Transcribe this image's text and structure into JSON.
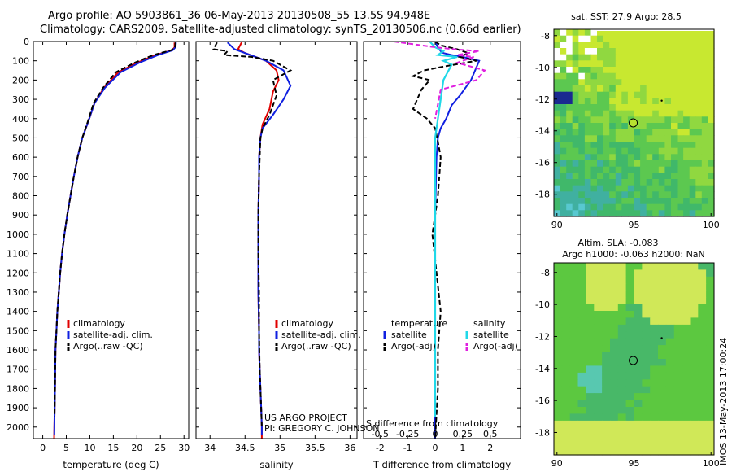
{
  "header": {
    "line1": "Argo profile: AO 5903861_36 06-May-2013 20130508_55 13.5S 94.948E",
    "line2": "Climatology: CARS2009. Satellite-adjusted climatology: synTS_20130506.nc (0.66d earlier)"
  },
  "side_label": "IMOS 13-May-2013 17:00:24",
  "colors": {
    "clim": "#e00000",
    "sat": "#1020e0",
    "argo": "#000000",
    "sal_sat": "#20d8e8",
    "sal_argo": "#e020e0"
  },
  "chart_data": [
    {
      "type": "line",
      "id": "temperature",
      "xlabel": "temperature (deg C)",
      "ylabel": "",
      "xlim": [
        -2,
        31
      ],
      "ylim": [
        2060,
        0
      ],
      "xticks": [
        0,
        5,
        10,
        15,
        20,
        25,
        30
      ],
      "yticks": [
        0,
        100,
        200,
        300,
        400,
        500,
        600,
        700,
        800,
        900,
        1000,
        1100,
        1200,
        1300,
        1400,
        1500,
        1600,
        1700,
        1800,
        1900,
        2000
      ],
      "legend": [
        "climatology",
        "satellite-adj. clim.",
        "Argo(..raw -QC)"
      ],
      "series": [
        {
          "name": "climatology",
          "style": "clim",
          "x": [
            28,
            28,
            27.5,
            24,
            20,
            16,
            13,
            11,
            9.6,
            8.4,
            7.4,
            6.6,
            5.9,
            5.2,
            4.6,
            4.1,
            3.7,
            3.4,
            3.1,
            2.9,
            2.7,
            2.6,
            2.5,
            2.4
          ],
          "y": [
            5,
            30,
            45,
            70,
            110,
            160,
            240,
            320,
            420,
            500,
            600,
            700,
            800,
            900,
            1000,
            1100,
            1200,
            1300,
            1400,
            1500,
            1600,
            1800,
            1950,
            2060
          ]
        },
        {
          "name": "satellite-adj. clim.",
          "style": "sat",
          "x": [
            28.3,
            28.2,
            27.6,
            24.5,
            20.5,
            16.5,
            13.2,
            11,
            9.6,
            8.4,
            7.4,
            6.6,
            5.9,
            5.2,
            4.6,
            4.1,
            3.7,
            3.4,
            3.1,
            2.9,
            2.7,
            2.6,
            2.5,
            2.45
          ],
          "y": [
            5,
            30,
            45,
            70,
            110,
            160,
            240,
            320,
            420,
            500,
            600,
            700,
            800,
            900,
            1000,
            1100,
            1200,
            1300,
            1400,
            1500,
            1600,
            1800,
            1950,
            2040
          ]
        },
        {
          "name": "Argo(..raw -QC)",
          "style": "argo",
          "x": [
            28.2,
            28.1,
            27.3,
            23.5,
            19.5,
            15.5,
            12.8,
            10.8,
            9.5,
            8.4,
            7.4,
            6.6,
            5.9,
            5.2,
            4.6,
            4.1,
            3.7,
            3.4,
            3.1,
            2.9,
            2.7,
            2.6,
            2.5
          ],
          "y": [
            5,
            30,
            45,
            70,
            110,
            160,
            240,
            320,
            420,
            500,
            600,
            700,
            800,
            900,
            1000,
            1100,
            1200,
            1300,
            1400,
            1500,
            1600,
            1800,
            1950
          ]
        }
      ]
    },
    {
      "type": "line",
      "id": "salinity",
      "xlabel": "salinity",
      "ylabel": "",
      "xlim": [
        33.8,
        36.1
      ],
      "ylim": [
        2060,
        0
      ],
      "xticks": [
        34,
        34.5,
        35,
        35.5,
        36
      ],
      "xticklabels": [
        "34",
        "34.5",
        "35",
        "35.5",
        "36"
      ],
      "legend": [
        "climatology",
        "satellite-adj. clim.",
        "Argo(..raw -QC)"
      ],
      "footer": [
        "US ARGO PROJECT",
        "PI: GREGORY C. JOHNSON"
      ],
      "series": [
        {
          "name": "climatology",
          "style": "clim",
          "x": [
            34.45,
            34.4,
            34.5,
            34.8,
            34.95,
            34.98,
            34.9,
            34.85,
            34.75,
            34.72,
            34.7,
            34.7,
            34.69,
            34.69,
            34.69,
            34.7,
            34.7,
            34.71,
            34.72,
            34.73,
            34.74,
            34.74
          ],
          "y": [
            5,
            40,
            60,
            100,
            150,
            200,
            260,
            350,
            430,
            500,
            600,
            700,
            900,
            1100,
            1300,
            1500,
            1600,
            1700,
            1800,
            1900,
            2000,
            2060
          ]
        },
        {
          "name": "satellite-adj. clim.",
          "style": "sat",
          "x": [
            34.25,
            34.35,
            34.5,
            34.8,
            35.05,
            35.15,
            35.05,
            34.9,
            34.75,
            34.72,
            34.7,
            34.7,
            34.69,
            34.69,
            34.69,
            34.7,
            34.7,
            34.71,
            34.72,
            34.73,
            34.74,
            34.74
          ],
          "y": [
            5,
            40,
            60,
            100,
            150,
            230,
            300,
            380,
            450,
            500,
            600,
            700,
            900,
            1100,
            1300,
            1500,
            1600,
            1700,
            1800,
            1900,
            2000,
            2040
          ]
        },
        {
          "name": "Argo(..raw -QC)",
          "style": "argo",
          "x": [
            34.1,
            34.05,
            34.25,
            34.2,
            34.6,
            34.9,
            35.15,
            34.9,
            34.95,
            34.85,
            34.75,
            34.72,
            34.7,
            34.69,
            34.69,
            34.7,
            34.7,
            34.71,
            34.72,
            34.73,
            34.74
          ],
          "y": [
            5,
            40,
            50,
            70,
            80,
            100,
            150,
            200,
            280,
            380,
            450,
            500,
            700,
            900,
            1100,
            1300,
            1500,
            1700,
            1800,
            1900,
            2000
          ]
        }
      ]
    },
    {
      "type": "line",
      "id": "difference",
      "xlabel": "T difference from climatology",
      "title_in": "S difference from climatology",
      "xlim": [
        -2.6,
        3.1
      ],
      "ylim": [
        2060,
        0
      ],
      "xticks": [
        -2,
        -1,
        0,
        1,
        2
      ],
      "xticklabels": [
        "-2",
        "-1",
        "0",
        "1",
        "2"
      ],
      "sticks": [
        -0.5,
        -0.25,
        0,
        0.25,
        0.5
      ],
      "sticklabels": [
        "-0.5",
        "-0.25",
        "0",
        "0.25",
        "0.5"
      ],
      "legend_left_title": "temperature",
      "legend_right_title": "salinity",
      "legend_left": [
        "satellite",
        "Argo(-adj)"
      ],
      "legend_right": [
        "satellite",
        "Argo(-adj)"
      ],
      "series": [
        {
          "name": "T satellite",
          "style": "sat",
          "x": [
            0,
            0.1,
            0.2,
            0.3,
            0.6,
            1.0,
            1.6,
            1.3,
            0.9,
            0.6,
            0.4,
            0.2,
            0.1,
            0.05,
            0,
            0,
            0,
            0
          ],
          "y": [
            0,
            30,
            50,
            60,
            70,
            80,
            100,
            200,
            280,
            330,
            400,
            450,
            500,
            600,
            900,
            1300,
            1700,
            2060
          ]
        },
        {
          "name": "T Argo(-adj)",
          "style": "argo",
          "x": [
            0,
            0.2,
            0.8,
            1.2,
            0.9,
            1.5,
            0.3,
            -0.4,
            -0.8,
            -0.2,
            -0.5,
            -0.8,
            -0.3,
            0,
            0.1,
            0.2,
            0.1,
            -0.1,
            0.05,
            0.2,
            0.1,
            0.1,
            0
          ],
          "y": [
            0,
            20,
            40,
            60,
            80,
            100,
            130,
            150,
            180,
            200,
            250,
            350,
            400,
            450,
            520,
            600,
            800,
            1000,
            1200,
            1400,
            1600,
            1800,
            2060
          ]
        },
        {
          "name": "S satellite",
          "style": "sal_sat",
          "x": [
            -0.2,
            0,
            0.3,
            0.1,
            0.8,
            0.3,
            0.6,
            0.3,
            0.2,
            0.1,
            0,
            0,
            0,
            0
          ],
          "y": [
            0,
            30,
            50,
            70,
            80,
            100,
            120,
            200,
            300,
            400,
            500,
            800,
            1300,
            1950
          ]
        },
        {
          "name": "S Argo(-adj)",
          "style": "sal_argo",
          "x": [
            -1.5,
            -0.5,
            0,
            0.7,
            1.6,
            0.8,
            1.4,
            0.8,
            1.8,
            1.5,
            0.2,
            0
          ],
          "y": [
            0,
            20,
            30,
            40,
            50,
            70,
            80,
            110,
            150,
            200,
            250,
            400
          ]
        }
      ]
    },
    {
      "type": "heatmap",
      "id": "sst",
      "title": "sat. SST: 27.9 Argo: 28.5",
      "xticks": [
        90,
        95,
        100
      ],
      "yticks": [
        -8,
        -10,
        -12,
        -14,
        -16,
        -18
      ],
      "xlim": [
        89.8,
        100.2
      ],
      "ylim": [
        -19.4,
        -7.6
      ],
      "argo_pos": [
        94.95,
        -13.5
      ],
      "float_pos": [
        96.8,
        -12.1
      ]
    },
    {
      "type": "heatmap",
      "id": "sla",
      "title": "Altim. SLA: -0.083",
      "subtitle": "Argo h1000: -0.063 h2000: NaN",
      "xticks": [
        90,
        95,
        100
      ],
      "yticks": [
        -8,
        -10,
        -12,
        -14,
        -16,
        -18
      ],
      "xlim": [
        89.8,
        100.2
      ],
      "ylim": [
        -19.4,
        -7.4
      ],
      "argo_pos": [
        94.95,
        -13.5
      ],
      "float_pos": [
        96.8,
        -12.1
      ]
    }
  ]
}
